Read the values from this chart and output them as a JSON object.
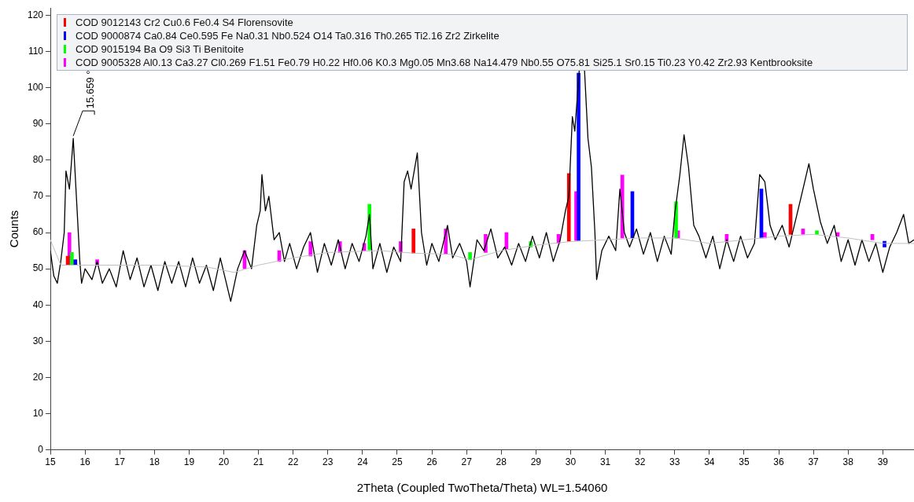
{
  "chart_data": {
    "type": "line",
    "xlabel": "2Theta (Coupled TwoTheta/Theta) WL=1.54060",
    "ylabel": "Counts",
    "xlim": [
      15,
      39.9
    ],
    "xticks": [
      15,
      16,
      17,
      18,
      19,
      20,
      21,
      22,
      23,
      24,
      25,
      26,
      27,
      28,
      29,
      30,
      31,
      32,
      33,
      34,
      35,
      36,
      37,
      38,
      39
    ],
    "ylim": [
      0,
      122
    ],
    "yticks": [
      0,
      10,
      20,
      30,
      40,
      50,
      60,
      70,
      80,
      90,
      100,
      110,
      120
    ],
    "grid": false,
    "legend": "top",
    "marker": "none",
    "line_style": "solid",
    "annotations": [
      {
        "text": "15.659 °",
        "x": 15.659,
        "y": 86
      }
    ],
    "series": [
      {
        "color": "#c0c0c0",
        "x": [
          15.0,
          15.3,
          16,
          18,
          19.5,
          20.3,
          21,
          22,
          23,
          24.5,
          25.5,
          26.5,
          27.1,
          28,
          29,
          30,
          31,
          32,
          33,
          34,
          35,
          36,
          37,
          38,
          39,
          39.9
        ],
        "values": [
          58,
          51,
          51,
          51,
          50.5,
          49,
          51,
          53,
          54.5,
          55,
          54.3,
          54,
          52.5,
          55,
          56.5,
          57.5,
          58,
          58.5,
          58.5,
          57,
          58,
          59,
          59.5,
          58.5,
          57,
          57
        ]
      },
      {
        "color": "#000000",
        "x": [
          15.0,
          15.1,
          15.2,
          15.3,
          15.4,
          15.45,
          15.55,
          15.66,
          15.75,
          15.85,
          15.9,
          16.0,
          16.2,
          16.35,
          16.5,
          16.7,
          16.9,
          17.1,
          17.3,
          17.5,
          17.7,
          17.9,
          18.1,
          18.3,
          18.5,
          18.7,
          18.9,
          19.1,
          19.3,
          19.5,
          19.7,
          19.9,
          20.1,
          20.2,
          20.4,
          20.6,
          20.8,
          20.95,
          21.05,
          21.1,
          21.2,
          21.3,
          21.45,
          21.6,
          21.75,
          21.9,
          22.1,
          22.3,
          22.5,
          22.7,
          22.9,
          23.1,
          23.3,
          23.5,
          23.7,
          23.9,
          24.1,
          24.2,
          24.3,
          24.5,
          24.7,
          24.9,
          25.1,
          25.2,
          25.3,
          25.4,
          25.58,
          25.7,
          25.85,
          26.0,
          26.2,
          26.45,
          26.6,
          26.8,
          27.0,
          27.1,
          27.3,
          27.5,
          27.7,
          27.9,
          28.1,
          28.3,
          28.5,
          28.7,
          28.9,
          29.1,
          29.3,
          29.5,
          29.7,
          29.85,
          29.95,
          30.05,
          30.12,
          30.25,
          30.4,
          30.5,
          30.6,
          30.7,
          30.75,
          30.9,
          31.1,
          31.3,
          31.42,
          31.55,
          31.7,
          31.9,
          32.1,
          32.3,
          32.5,
          32.7,
          32.9,
          33.0,
          33.15,
          33.27,
          33.4,
          33.55,
          33.7,
          33.9,
          34.1,
          34.3,
          34.5,
          34.7,
          34.9,
          35.1,
          35.3,
          35.45,
          35.6,
          35.75,
          35.9,
          36.1,
          36.3,
          36.5,
          36.65,
          36.87,
          37.0,
          37.2,
          37.4,
          37.6,
          37.8,
          38.0,
          38.2,
          38.4,
          38.6,
          38.8,
          39.0,
          39.2,
          39.4,
          39.6,
          39.75,
          39.9
        ],
        "values": [
          55,
          48,
          46,
          52,
          60,
          77,
          72,
          86,
          70,
          52,
          46,
          50,
          47,
          52,
          46,
          50,
          45,
          55,
          47,
          53,
          45,
          51,
          44,
          52,
          46,
          52,
          45,
          53,
          46,
          51,
          44,
          53,
          45,
          41,
          50,
          55,
          50,
          62,
          66,
          76,
          66,
          70,
          58,
          60,
          52,
          57,
          50,
          56,
          60,
          49,
          57,
          51,
          58,
          50,
          57,
          52,
          59,
          65,
          50,
          57,
          49,
          56,
          52,
          74,
          77,
          72,
          82,
          60,
          51,
          57,
          52,
          62,
          53,
          57,
          52,
          45,
          58,
          55,
          61,
          53,
          56,
          51,
          57,
          52,
          59,
          53,
          60,
          52,
          58,
          66,
          70,
          92,
          88,
          105,
          105,
          86,
          78,
          60,
          47,
          55,
          59,
          55,
          72,
          60,
          56,
          61,
          54,
          60,
          52,
          59,
          54,
          65,
          76,
          87,
          78,
          62,
          59,
          53,
          59,
          50,
          58,
          52,
          59,
          53,
          57,
          76,
          74,
          62,
          58,
          62,
          56,
          64,
          70,
          79,
          72,
          63,
          57,
          62,
          52,
          58,
          51,
          58,
          52,
          57,
          49,
          56,
          60,
          65,
          57,
          58
        ]
      },
      {
        "type": "bar",
        "name": "COD 9012143 Cr2 Cu0.6 Fe0.4 S4 Florensovite",
        "color": "#ff0000",
        "x": [
          15.5,
          25.47,
          29.95,
          36.34
        ],
        "base": [
          51,
          54.3,
          57.6,
          59.5
        ],
        "values": [
          2.5,
          6.7,
          18.7,
          8.3
        ]
      },
      {
        "type": "bar",
        "name": "COD 9000874 Ca0.84 Ce0.595 Fe Na0.31 Nb0.524 O14 Ta0.316 Th0.265 Ti2.16 Zr2 Zirkelite",
        "color": "#0000ff",
        "x": [
          15.72,
          30.23,
          31.78,
          35.5,
          39.05
        ],
        "base": [
          51,
          57.8,
          58.5,
          58.5,
          56
        ],
        "values": [
          1.5,
          46.2,
          12.8,
          13.5,
          1.6
        ]
      },
      {
        "type": "bar",
        "name": "COD 9015194 Ba O9 Si3 Ti Benitoite",
        "color": "#00ff00",
        "x": [
          15.62,
          24.2,
          27.1,
          28.85,
          33.04,
          37.1
        ],
        "base": [
          51,
          55.2,
          52.5,
          56,
          58.5,
          59.5
        ],
        "values": [
          3.5,
          12.6,
          2,
          1.5,
          10,
          1
        ]
      },
      {
        "type": "bar",
        "name": "COD 9005328 Al0.13 Ca3.27 Cl0.269 F1.51 Fe0.79 H0.22 Hf0.06 K0.3 Mg0.05 Mn3.68 Na14.479 Nb0.55 O75.81 Si25.1 Sr0.15 Ti0.23 Y0.42 Zr2.93 Kentbrooksite",
        "color": "#ff00ff",
        "x": [
          15.55,
          16.35,
          20.6,
          21.6,
          22.5,
          23.35,
          24.05,
          25.1,
          26.4,
          27.55,
          28.15,
          29.65,
          30.16,
          31.49,
          33.1,
          34.5,
          35.6,
          36.7,
          37.7,
          38.7
        ],
        "base": [
          51,
          51,
          50,
          52,
          53.5,
          54.5,
          55,
          54.5,
          54,
          54.5,
          55.5,
          57,
          57.8,
          58.5,
          58.5,
          57.5,
          58.5,
          59.5,
          59,
          58
        ],
        "values": [
          9,
          1.5,
          5,
          3,
          4,
          3,
          2,
          3,
          7,
          5,
          4.5,
          2.5,
          13.5,
          17.4,
          2,
          2,
          1.5,
          1.5,
          1,
          1.5
        ]
      }
    ]
  }
}
